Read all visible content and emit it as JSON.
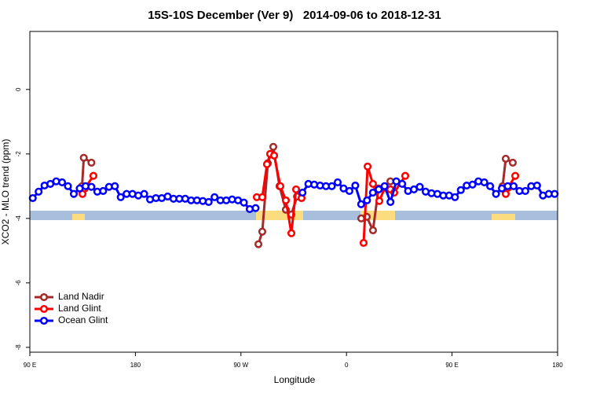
{
  "chart_data": {
    "type": "line",
    "title": "15S-10S December (Ver 9)   2014-09-06 to 2018-12-31",
    "x_label": "Longitude",
    "y_label": "XCO2 - MLO trend (ppm)",
    "xlim": [
      90,
      540
    ],
    "xticks": [
      {
        "value": 90,
        "label": "90 E"
      },
      {
        "value": 180,
        "label": "180"
      },
      {
        "value": 270,
        "label": "90 W"
      },
      {
        "value": 360,
        "label": "0"
      },
      {
        "value": 450,
        "label": "90 E"
      },
      {
        "value": 540,
        "label": "180"
      }
    ],
    "ylim": [
      -8.15,
      1.8
    ],
    "yticks": [
      0,
      -2,
      -4,
      -6,
      -8
    ],
    "legend": "bottom-left",
    "series": [
      {
        "name": "Land Nadir",
        "color": "#a52a2a",
        "x": [
          134.5,
          136,
          142.5,
          210,
          284.9,
          288.2,
          292.9,
          297.6,
          302.9,
          308.3,
          313.0,
          317.8,
          345,
          372.6,
          377.3,
          382.6,
          387.3,
          392.7,
          397.4,
          445,
          493.1,
          495.8,
          501.8
        ],
        "values": [
          -3.0,
          -2.12,
          -2.27,
          null,
          -4.8,
          -4.41,
          -2.29,
          -1.78,
          -3.0,
          -3.73,
          -3.88,
          -3.32,
          null,
          -4.0,
          -3.95,
          -4.37,
          -3.07,
          -3.02,
          -2.85,
          null,
          -3.0,
          -2.15,
          -2.27
        ]
      },
      {
        "name": "Land Glint",
        "color": "#ff0000",
        "x": [
          134.9,
          136.9,
          144.2,
          210,
          283.5,
          288.2,
          292.2,
          294.9,
          298.3,
          303.6,
          308.3,
          313.0,
          317.0,
          321.7,
          345,
          374.6,
          378.0,
          382.6,
          388.0,
          392.7,
          397.4,
          400.7,
          410.1,
          450,
          495.8,
          497.8,
          503.9
        ],
        "values": [
          -3.24,
          -3.07,
          -2.68,
          null,
          -3.34,
          -3.34,
          -2.32,
          -2.0,
          -2.05,
          -3.0,
          -3.44,
          -4.46,
          -3.1,
          -3.37,
          null,
          -4.76,
          -2.39,
          -2.93,
          -3.46,
          -3.05,
          -3.1,
          -3.2,
          -2.68,
          null,
          -3.24,
          -3.05,
          -2.68
        ]
      },
      {
        "name": "Ocean Glint",
        "color": "#0000ff",
        "x": [
          92.5,
          97.5,
          102.5,
          107.5,
          112.5,
          117.5,
          122.5,
          127.5,
          132.5,
          137.5,
          142.5,
          147.5,
          152.5,
          157.5,
          162.5,
          167.5,
          172.5,
          177.5,
          182.5,
          187.5,
          192.5,
          197.5,
          202.5,
          207.5,
          212.5,
          217.5,
          222.5,
          227.5,
          232.5,
          237.5,
          242.5,
          247.5,
          252.5,
          257.5,
          262.5,
          267.5,
          272.5,
          277.5,
          282.5,
          287.5,
          292.5,
          297.5,
          302.5,
          307.5,
          312.5,
          317.5,
          322.5,
          327.5,
          332.5,
          337.5,
          342.5,
          347.5,
          352.5,
          357.5,
          362.5,
          367.5,
          372.5,
          377.5,
          382.5,
          387.5,
          392.5,
          397.5,
          402.5,
          407.5,
          412.5,
          417.5,
          422.5,
          427.5,
          432.5,
          437.5,
          442.5,
          447.5,
          452.5,
          457.5,
          462.5,
          467.5,
          472.5,
          477.5,
          482.5,
          487.5,
          492.5,
          497.5,
          502.5,
          507.5,
          512.5,
          517.5,
          522.5,
          527.5,
          532.5,
          537.5
        ],
        "values": [
          -3.37,
          -3.17,
          -2.98,
          -2.93,
          -2.85,
          -2.88,
          -3.0,
          -3.24,
          -3.07,
          -3.0,
          -3.02,
          -3.17,
          -3.15,
          -3.02,
          -3.0,
          -3.34,
          -3.24,
          -3.24,
          -3.29,
          -3.24,
          -3.41,
          -3.37,
          -3.37,
          -3.32,
          -3.39,
          -3.39,
          -3.39,
          -3.44,
          -3.44,
          -3.46,
          -3.49,
          -3.34,
          -3.44,
          -3.44,
          -3.41,
          -3.44,
          -3.51,
          -3.71,
          -3.68,
          null,
          null,
          null,
          null,
          null,
          null,
          null,
          -3.2,
          -2.93,
          -2.95,
          -2.98,
          -3.0,
          -3.0,
          -2.88,
          -3.07,
          -3.15,
          -2.98,
          -3.56,
          -3.44,
          -3.2,
          -3.1,
          -3.0,
          -3.49,
          -2.85,
          -2.93,
          -3.15,
          -3.1,
          -3.02,
          -3.17,
          -3.22,
          -3.24,
          -3.29,
          -3.29,
          -3.34,
          -3.12,
          -2.98,
          -2.95,
          -2.85,
          -2.88,
          -3.0,
          -3.24,
          -3.07,
          -3.0,
          -3.0,
          -3.15,
          -3.15,
          -3.0,
          -2.98,
          -3.29,
          -3.24,
          -3.24
        ]
      }
    ]
  }
}
